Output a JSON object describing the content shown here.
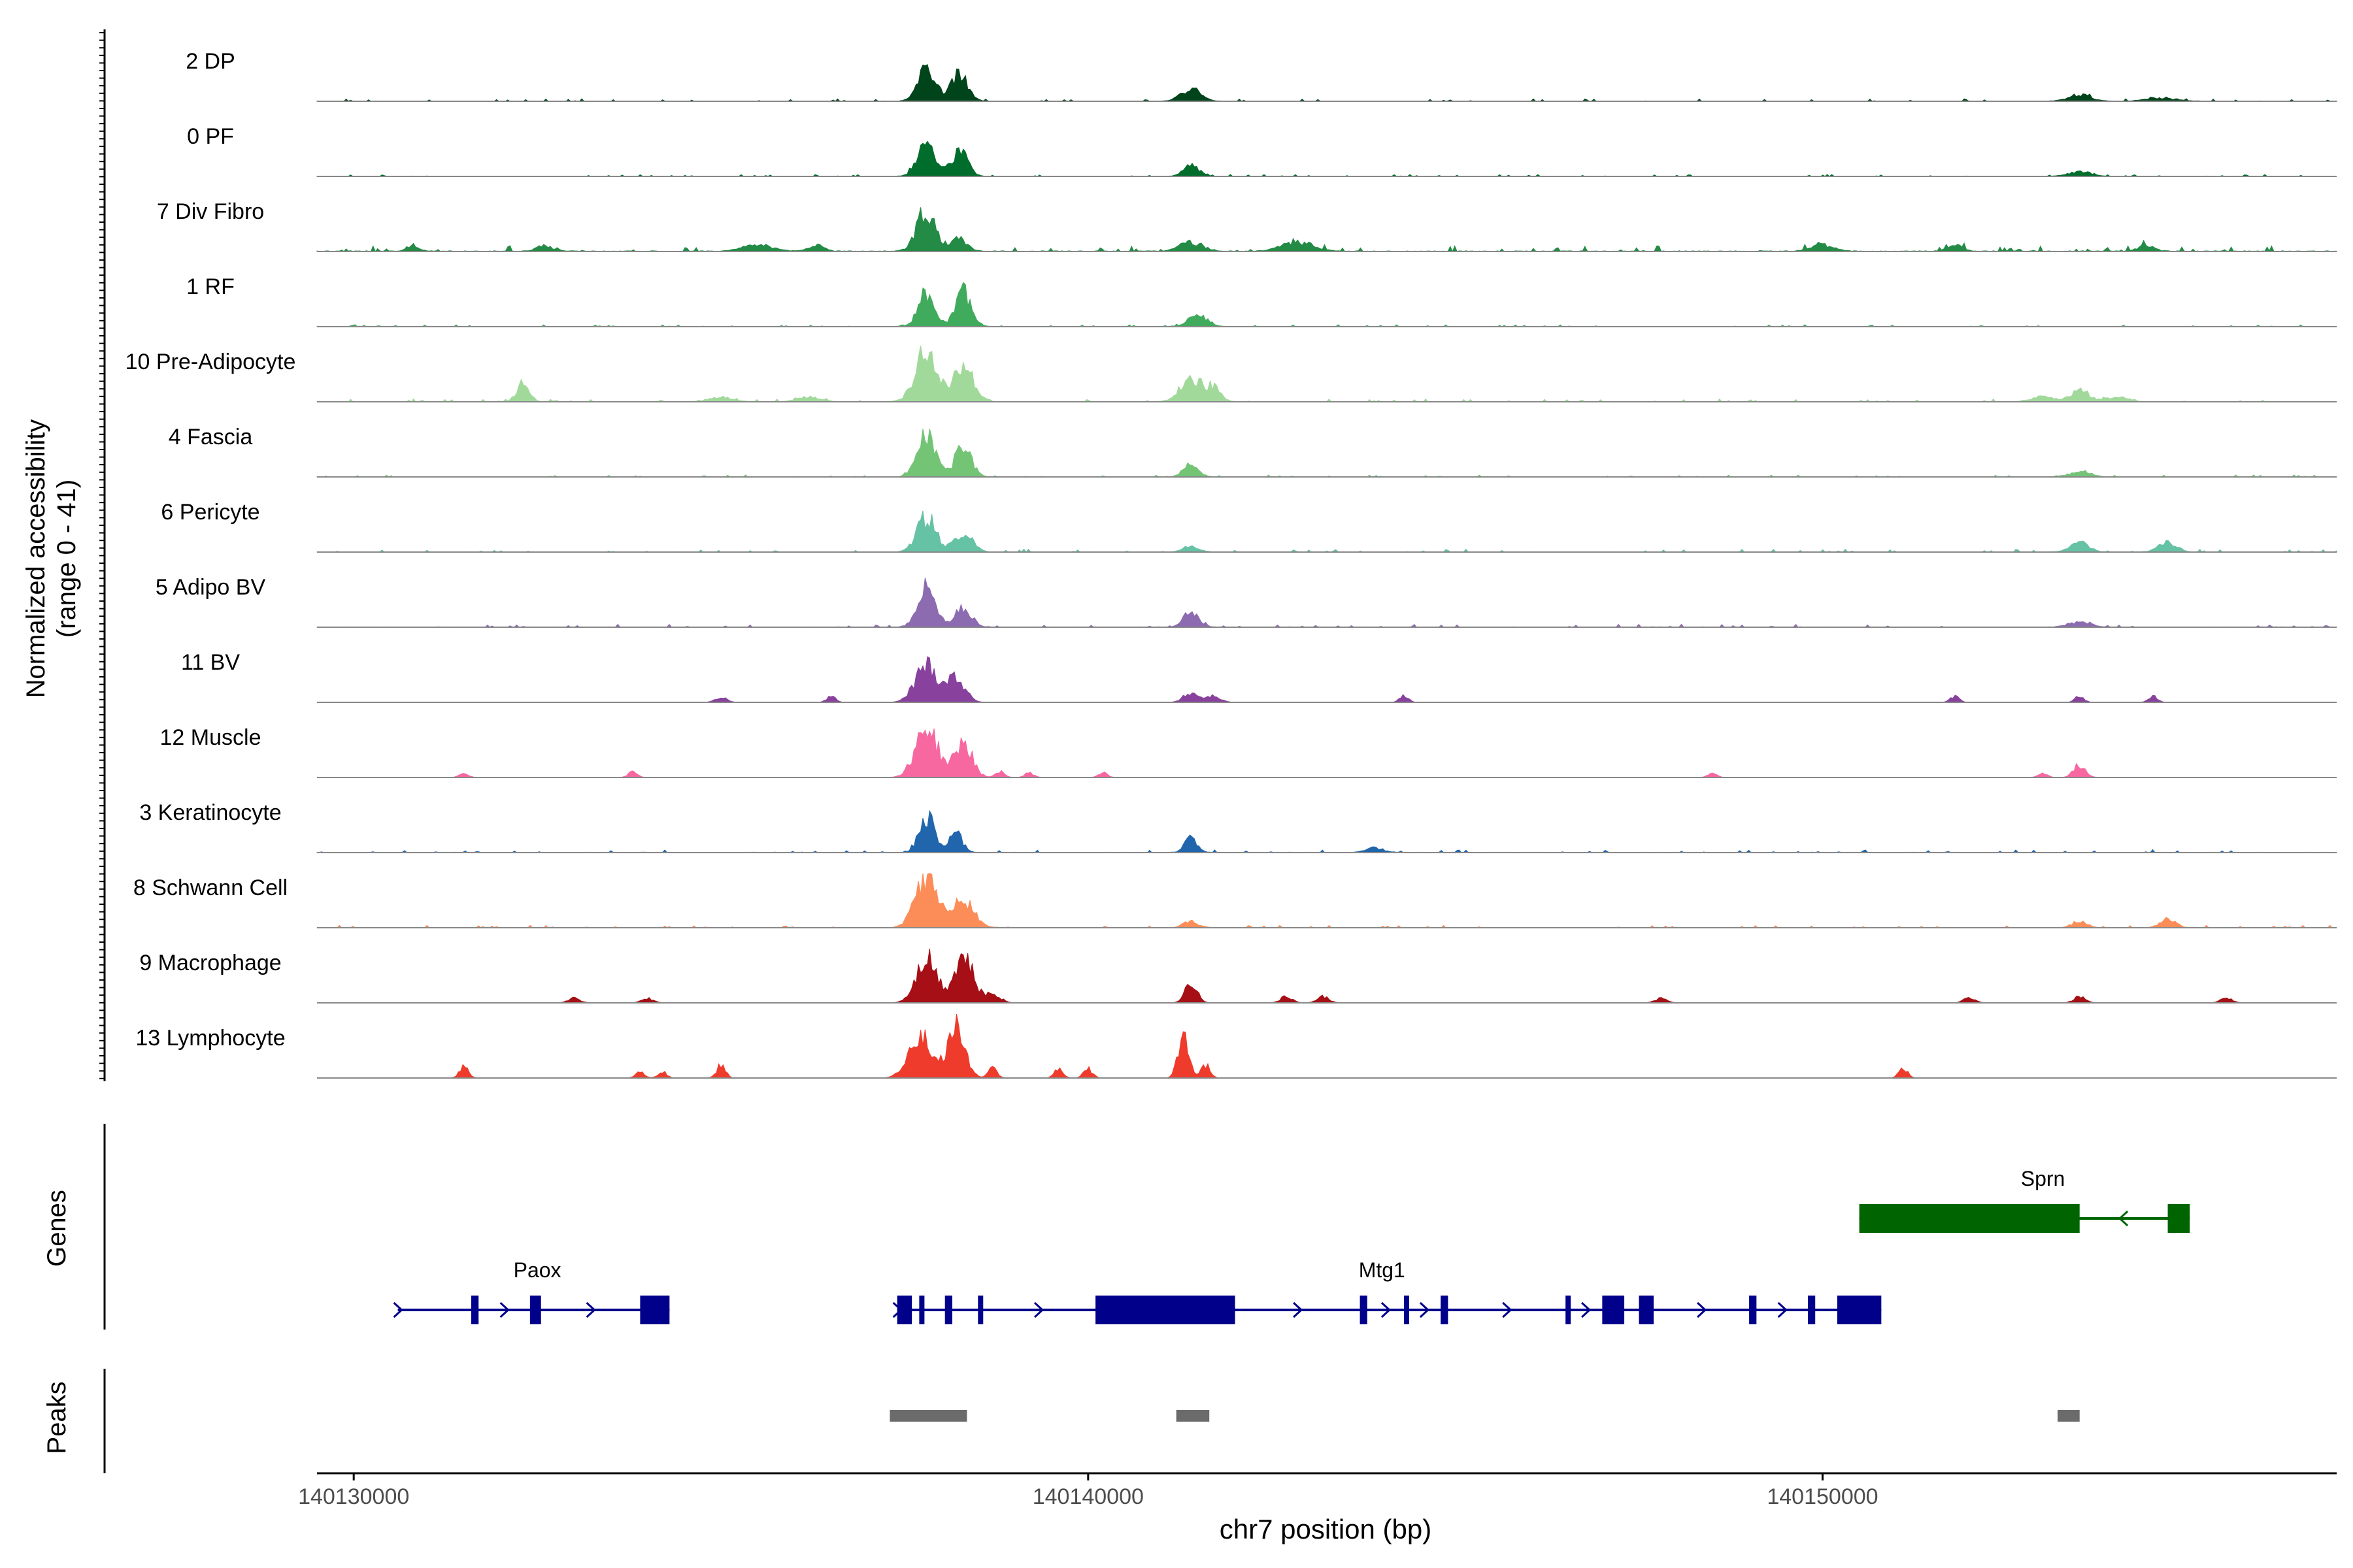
{
  "chart_data": {
    "type": "area",
    "title": "",
    "ylabel": "Normalized accessibility",
    "ylabel_range": "(range 0 - 41)",
    "xlabel": "chr7 position (bp)",
    "xlim": [
      140129500,
      140157000
    ],
    "ylim": [
      0,
      41
    ],
    "x_ticks": [
      "140130000",
      "140140000",
      "140150000"
    ],
    "x_tick_values": [
      140130000,
      140140000,
      140150000
    ],
    "tracks": [
      {
        "name": "2 DP",
        "color": "#00441b",
        "peaks": [
          [
            140137800,
            10,
            120
          ],
          [
            140138250,
            9,
            110
          ],
          [
            140141400,
            4,
            130
          ],
          [
            140153500,
            2,
            150
          ],
          [
            140154600,
            1,
            200
          ]
        ],
        "noise": 0.25,
        "spread": 0.25
      },
      {
        "name": "0 PF",
        "color": "#006d2c",
        "peaks": [
          [
            140137800,
            11,
            120
          ],
          [
            140138250,
            8,
            110
          ],
          [
            140141400,
            4,
            100
          ],
          [
            140153500,
            1.5,
            150
          ]
        ],
        "noise": 0.2,
        "spread": 0.2
      },
      {
        "name": "7 Div Fibro",
        "color": "#238b45",
        "peaks": [
          [
            140137800,
            13,
            130
          ],
          [
            140138250,
            4,
            100
          ],
          [
            140141400,
            3,
            150
          ],
          [
            140130800,
            2,
            80
          ],
          [
            140132600,
            2,
            100
          ],
          [
            140135500,
            2,
            200
          ],
          [
            140136300,
            2,
            100
          ],
          [
            140142700,
            2,
            150
          ],
          [
            140143000,
            2,
            150
          ],
          [
            140150000,
            2,
            150
          ],
          [
            140151800,
            2,
            100
          ],
          [
            140154400,
            2,
            100
          ]
        ],
        "noise": 0.6,
        "spread": 0.5
      },
      {
        "name": "1 RF",
        "color": "#41ab5d",
        "peaks": [
          [
            140137800,
            11,
            110
          ],
          [
            140138300,
            11,
            110
          ],
          [
            140141500,
            4,
            120
          ]
        ],
        "noise": 0.2,
        "spread": 0.2
      },
      {
        "name": "10 Pre-Adipocyte",
        "color": "#a1d99b",
        "peaks": [
          [
            140137800,
            16,
            150
          ],
          [
            140138300,
            11,
            140
          ],
          [
            140141400,
            7,
            150
          ],
          [
            140141700,
            4,
            100
          ],
          [
            140132300,
            6,
            80
          ],
          [
            140153500,
            4,
            120
          ],
          [
            140135000,
            1.5,
            150
          ],
          [
            140136200,
            1.5,
            150
          ],
          [
            140153000,
            1.5,
            150
          ],
          [
            140154000,
            1.5,
            150
          ]
        ],
        "noise": 0.3,
        "spread": 0.3
      },
      {
        "name": "4 Fascia",
        "color": "#74c476",
        "peaks": [
          [
            140137800,
            15,
            120
          ],
          [
            140138300,
            10,
            110
          ],
          [
            140141400,
            4,
            100
          ],
          [
            140153500,
            1.5,
            150
          ]
        ],
        "noise": 0.2,
        "spread": 0.2
      },
      {
        "name": "6 Pericyte",
        "color": "#66c2a4",
        "peaks": [
          [
            140137800,
            11,
            130
          ],
          [
            140138300,
            6,
            120
          ],
          [
            140141400,
            2,
            100
          ],
          [
            140153500,
            3,
            120
          ],
          [
            140154700,
            3,
            120
          ]
        ],
        "noise": 0.3,
        "spread": 0.3
      },
      {
        "name": "5 Adipo BV",
        "color": "#8c6bb1",
        "peaks": [
          [
            140137800,
            13,
            120
          ],
          [
            140138300,
            6,
            110
          ],
          [
            140141400,
            5,
            100
          ],
          [
            140153500,
            1.5,
            150
          ]
        ],
        "noise": 0.3,
        "spread": 0.35
      },
      {
        "name": "11 BV",
        "color": "#88419d",
        "peaks": [
          [
            140137800,
            12,
            150
          ],
          [
            140138200,
            8,
            120
          ],
          [
            140141400,
            3,
            100
          ],
          [
            140141700,
            2,
            100
          ],
          [
            140135000,
            1.5,
            80
          ],
          [
            140136500,
            2,
            60
          ],
          [
            140144300,
            2,
            60
          ],
          [
            140151800,
            2,
            60
          ],
          [
            140153500,
            2,
            60
          ],
          [
            140154500,
            2,
            60
          ]
        ],
        "noise": 0.0,
        "spread": 0.3
      },
      {
        "name": "12 Muscle",
        "color": "#f768a1",
        "peaks": [
          [
            140137800,
            16,
            150
          ],
          [
            140138300,
            11,
            120
          ],
          [
            140131500,
            1.5,
            60
          ],
          [
            140133800,
            2,
            60
          ],
          [
            140138800,
            2,
            60
          ],
          [
            140139200,
            1.5,
            60
          ],
          [
            140140200,
            1.5,
            60
          ],
          [
            140148500,
            1.5,
            60
          ],
          [
            140153000,
            1.5,
            60
          ],
          [
            140153500,
            4,
            80
          ]
        ],
        "noise": 0.0,
        "spread": 0.3
      },
      {
        "name": "3 Keratinocyte",
        "color": "#2166ac",
        "peaks": [
          [
            140137800,
            12,
            100
          ],
          [
            140138200,
            6,
            90
          ],
          [
            140141400,
            5,
            80
          ],
          [
            140143900,
            1.5,
            120
          ]
        ],
        "noise": 0.3,
        "spread": 0.3
      },
      {
        "name": "8 Schwann Cell",
        "color": "#fc8d59",
        "peaks": [
          [
            140137800,
            16,
            150
          ],
          [
            140138300,
            9,
            140
          ],
          [
            140141400,
            2,
            100
          ],
          [
            140153500,
            2,
            100
          ],
          [
            140154700,
            3,
            100
          ]
        ],
        "noise": 0.25,
        "spread": 0.3
      },
      {
        "name": "9 Macrophage",
        "color": "#a50f15",
        "peaks": [
          [
            140137800,
            15,
            140
          ],
          [
            140138300,
            15,
            130
          ],
          [
            140138700,
            3,
            100
          ],
          [
            140141400,
            7,
            80
          ],
          [
            140142700,
            2,
            80
          ],
          [
            140143200,
            2,
            80
          ],
          [
            140133000,
            1.5,
            80
          ],
          [
            140134000,
            1.5,
            80
          ],
          [
            140147800,
            1.5,
            80
          ],
          [
            140152000,
            1.5,
            80
          ],
          [
            140153500,
            2,
            80
          ],
          [
            140155500,
            1.5,
            80
          ]
        ],
        "noise": 0.0,
        "spread": 0.4
      },
      {
        "name": "13 Lymphocyte",
        "color": "#ef3b2c",
        "peaks": [
          [
            140137700,
            14,
            150
          ],
          [
            140138200,
            16,
            120
          ],
          [
            140138700,
            3,
            60
          ],
          [
            140141300,
            15,
            70
          ],
          [
            140141600,
            4,
            60
          ],
          [
            140131500,
            4,
            60
          ],
          [
            140133900,
            2,
            60
          ],
          [
            140134200,
            2,
            60
          ],
          [
            140135000,
            4,
            60
          ],
          [
            140139600,
            3,
            60
          ],
          [
            140140000,
            3,
            60
          ],
          [
            140151100,
            3,
            60
          ]
        ],
        "noise": 0.0,
        "spread": 0.0
      }
    ],
    "genes_label": "Genes",
    "peaks_label": "Peaks",
    "genes": [
      {
        "name": "Paox",
        "strand": "+",
        "row": 2,
        "color": "#00008b",
        "start": 140130600,
        "end": 140134300,
        "exons": [
          [
            140131600,
            140131700
          ],
          [
            140132400,
            140132550
          ],
          [
            140133900,
            140134300
          ]
        ],
        "label_pos": 140132500
      },
      {
        "name": "Mtg1",
        "strand": "+",
        "row": 2,
        "color": "#00008b",
        "start": 140137400,
        "end": 140150800,
        "exons": [
          [
            140137400,
            140137600
          ],
          [
            140137700,
            140137750
          ],
          [
            140138050,
            140138150
          ],
          [
            140138500,
            140138550
          ],
          [
            140140100,
            140142000
          ],
          [
            140143700,
            140143800
          ],
          [
            140144300,
            140144350
          ],
          [
            140144800,
            140144900
          ],
          [
            140146500,
            140146550
          ],
          [
            140147000,
            140147300
          ],
          [
            140147500,
            140147700
          ],
          [
            140149000,
            140149100
          ],
          [
            140149800,
            140149900
          ],
          [
            140150200,
            140150800
          ]
        ],
        "label_pos": 140144000
      },
      {
        "name": "Sprn",
        "strand": "-",
        "row": 1,
        "color": "#006400",
        "start": 140150500,
        "end": 140155000,
        "exons": [
          [
            140150500,
            140153500
          ],
          [
            140154700,
            140155000
          ]
        ],
        "label_pos": 140153000
      }
    ],
    "peak_regions": [
      [
        140137300,
        140138350
      ],
      [
        140141200,
        140141650
      ],
      [
        140153200,
        140153500
      ]
    ]
  }
}
